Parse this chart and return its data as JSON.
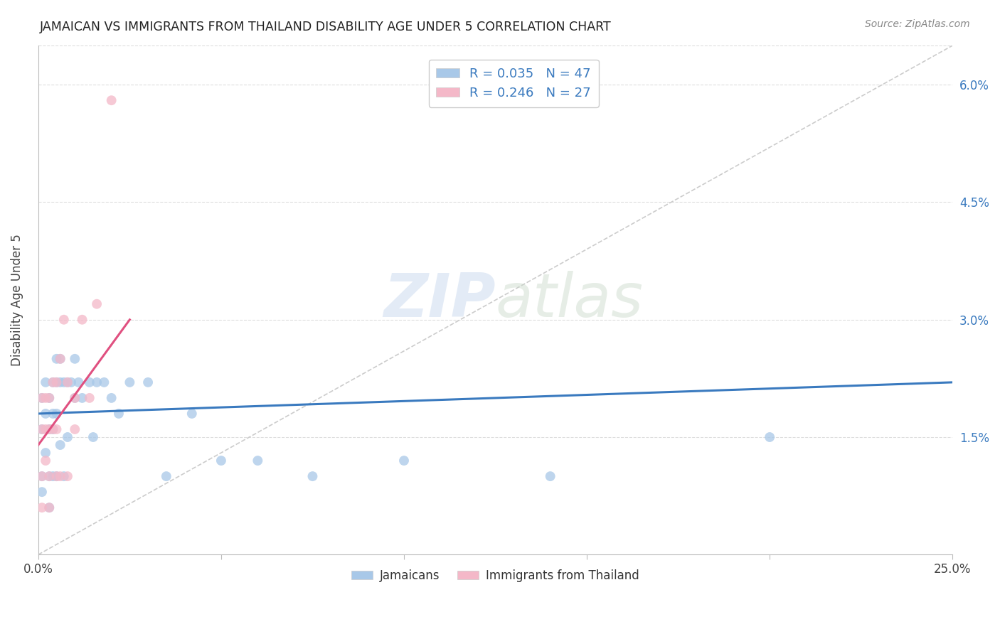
{
  "title": "JAMAICAN VS IMMIGRANTS FROM THAILAND DISABILITY AGE UNDER 5 CORRELATION CHART",
  "source": "Source: ZipAtlas.com",
  "ylabel": "Disability Age Under 5",
  "watermark_zip": "ZIP",
  "watermark_atlas": "atlas",
  "xlim": [
    0.0,
    0.25
  ],
  "ylim": [
    0.0,
    0.065
  ],
  "xticks": [
    0.0,
    0.05,
    0.1,
    0.15,
    0.2,
    0.25
  ],
  "xticklabels": [
    "0.0%",
    "",
    "",
    "",
    "",
    "25.0%"
  ],
  "yticks": [
    0.0,
    0.015,
    0.03,
    0.045,
    0.06
  ],
  "yticklabels": [
    "",
    "1.5%",
    "3.0%",
    "4.5%",
    "6.0%"
  ],
  "legend_r1": "R = 0.035",
  "legend_n1": "N = 47",
  "legend_r2": "R = 0.246",
  "legend_n2": "N = 27",
  "blue_scatter_color": "#a8c8e8",
  "pink_scatter_color": "#f4b8c8",
  "blue_line_color": "#3a7abf",
  "pink_line_color": "#e05080",
  "diag_line_color": "#cccccc",
  "jamaicans_x": [
    0.001,
    0.001,
    0.001,
    0.001,
    0.002,
    0.002,
    0.002,
    0.003,
    0.003,
    0.003,
    0.003,
    0.004,
    0.004,
    0.004,
    0.004,
    0.005,
    0.005,
    0.005,
    0.005,
    0.006,
    0.006,
    0.006,
    0.007,
    0.007,
    0.008,
    0.008,
    0.009,
    0.01,
    0.01,
    0.011,
    0.012,
    0.014,
    0.015,
    0.016,
    0.018,
    0.02,
    0.022,
    0.025,
    0.03,
    0.035,
    0.042,
    0.05,
    0.06,
    0.075,
    0.1,
    0.14,
    0.2
  ],
  "jamaicans_y": [
    0.02,
    0.016,
    0.01,
    0.008,
    0.022,
    0.018,
    0.013,
    0.02,
    0.016,
    0.01,
    0.006,
    0.022,
    0.018,
    0.016,
    0.01,
    0.025,
    0.022,
    0.018,
    0.01,
    0.025,
    0.022,
    0.014,
    0.022,
    0.01,
    0.022,
    0.015,
    0.022,
    0.025,
    0.02,
    0.022,
    0.02,
    0.022,
    0.015,
    0.022,
    0.022,
    0.02,
    0.018,
    0.022,
    0.022,
    0.01,
    0.018,
    0.012,
    0.012,
    0.01,
    0.012,
    0.01,
    0.015
  ],
  "thailand_x": [
    0.001,
    0.001,
    0.001,
    0.001,
    0.002,
    0.002,
    0.002,
    0.003,
    0.003,
    0.003,
    0.003,
    0.004,
    0.004,
    0.005,
    0.005,
    0.005,
    0.006,
    0.006,
    0.007,
    0.008,
    0.008,
    0.01,
    0.01,
    0.012,
    0.014,
    0.016,
    0.02
  ],
  "thailand_y": [
    0.02,
    0.016,
    0.01,
    0.006,
    0.02,
    0.016,
    0.012,
    0.02,
    0.016,
    0.01,
    0.006,
    0.022,
    0.016,
    0.022,
    0.016,
    0.01,
    0.025,
    0.01,
    0.03,
    0.022,
    0.01,
    0.02,
    0.016,
    0.03,
    0.02,
    0.032,
    0.058
  ],
  "blue_trend_x": [
    0.0,
    0.25
  ],
  "blue_trend_y": [
    0.018,
    0.022
  ],
  "pink_trend_x": [
    0.0,
    0.025
  ],
  "pink_trend_y": [
    0.014,
    0.03
  ]
}
